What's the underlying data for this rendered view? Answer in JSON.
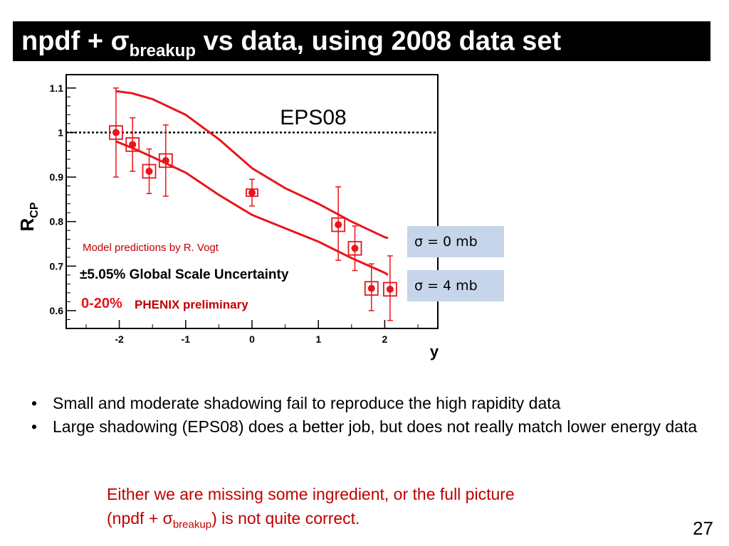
{
  "slide": {
    "title": {
      "prefix": "npdf + ",
      "sigma": "σ",
      "sub": "breakup",
      "suffix": " vs data, using 2008 data set"
    },
    "legend_boxes": [
      {
        "label": "σ = 0 mb"
      },
      {
        "label": "σ = 4 mb"
      }
    ],
    "bullets": [
      "Small and moderate shadowing fail to reproduce the high rapidity data",
      "Large shadowing (EPS08) does a better job, but does not really match lower energy data"
    ],
    "conclusion": {
      "line1": "Either we are missing some ingredient, or the full picture",
      "line2_prefix": "(npdf + ",
      "sigma": "σ",
      "sub": "breakup",
      "line2_suffix": ") is not quite correct."
    },
    "page_number": "27",
    "colors": {
      "accent": "#c00000",
      "data": "#e8151b",
      "box_bg": "#c6d5ea"
    }
  },
  "chart_data": {
    "type": "scatter",
    "title": "EPS08",
    "xlabel": "y",
    "ylabel": "R_CP",
    "ylabel_main": "R",
    "ylabel_sub": "CP",
    "xlim": [
      -2.8,
      2.8
    ],
    "ylim": [
      0.56,
      1.13
    ],
    "xticks": [
      -2,
      -1,
      0,
      1,
      2
    ],
    "xtick_labels": [
      "-2",
      "-1",
      "0",
      "1",
      "2"
    ],
    "yticks": [
      0.6,
      0.7,
      0.8,
      0.9,
      1.0,
      1.1
    ],
    "ytick_labels": [
      "0.6",
      "0.7",
      "0.8",
      "0.9",
      "1",
      "1.1"
    ],
    "reference_line": 1.0,
    "annotations": {
      "model": "Model predictions by R. Vogt",
      "scale_uncertainty": "±5.05% Global Scale Uncertainty",
      "centrality": "0-20%",
      "preliminary": "PHENIX preliminary"
    },
    "points": [
      {
        "x": -2.05,
        "y": 1.0,
        "err_lo": 0.1,
        "err_hi": 0.1,
        "sys": 0.015
      },
      {
        "x": -1.8,
        "y": 0.973,
        "err_lo": 0.06,
        "err_hi": 0.06,
        "sys": 0.015
      },
      {
        "x": -1.55,
        "y": 0.913,
        "err_lo": 0.05,
        "err_hi": 0.05,
        "sys": 0.015
      },
      {
        "x": -1.3,
        "y": 0.937,
        "err_lo": 0.08,
        "err_hi": 0.08,
        "sys": 0.015
      },
      {
        "x": 0.0,
        "y": 0.865,
        "err_lo": 0.03,
        "err_hi": 0.03,
        "sys": 0.008
      },
      {
        "x": 1.3,
        "y": 0.793,
        "err_lo": 0.08,
        "err_hi": 0.085,
        "sys": 0.015
      },
      {
        "x": 1.55,
        "y": 0.74,
        "err_lo": 0.05,
        "err_hi": 0.05,
        "sys": 0.015
      },
      {
        "x": 1.8,
        "y": 0.65,
        "err_lo": 0.05,
        "err_hi": 0.055,
        "sys": 0.015
      },
      {
        "x": 2.08,
        "y": 0.648,
        "err_lo": 0.07,
        "err_hi": 0.075,
        "sys": 0.015
      }
    ],
    "series": [
      {
        "x": [
          -2.05,
          -1.8,
          -1.5,
          -1.0,
          -0.5,
          0.0,
          0.5,
          1.0,
          1.5,
          2.0,
          2.05
        ],
        "y": [
          1.093,
          1.088,
          1.075,
          1.04,
          0.985,
          0.92,
          0.875,
          0.84,
          0.8,
          0.765,
          0.763
        ]
      },
      {
        "x": [
          -2.05,
          -1.8,
          -1.5,
          -1.0,
          -0.5,
          0.0,
          0.5,
          1.0,
          1.5,
          2.0,
          2.05
        ],
        "y": [
          0.98,
          0.965,
          0.945,
          0.91,
          0.86,
          0.815,
          0.785,
          0.755,
          0.718,
          0.685,
          0.68
        ]
      }
    ],
    "grid": false
  }
}
